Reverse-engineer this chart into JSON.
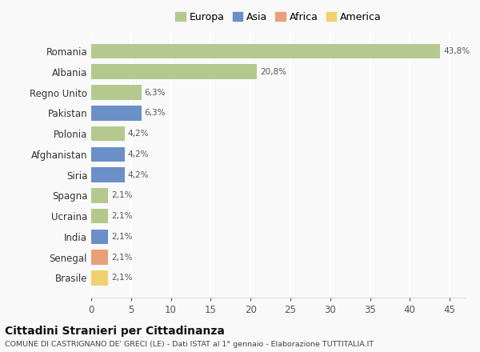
{
  "categories": [
    "Romania",
    "Albania",
    "Regno Unito",
    "Pakistan",
    "Polonia",
    "Afghanistan",
    "Siria",
    "Spagna",
    "Ucraina",
    "India",
    "Senegal",
    "Brasile"
  ],
  "values": [
    43.8,
    20.8,
    6.3,
    6.3,
    4.2,
    4.2,
    4.2,
    2.1,
    2.1,
    2.1,
    2.1,
    2.1
  ],
  "labels": [
    "43,8%",
    "20,8%",
    "6,3%",
    "6,3%",
    "4,2%",
    "4,2%",
    "4,2%",
    "2,1%",
    "2,1%",
    "2,1%",
    "2,1%",
    "2,1%"
  ],
  "colors": [
    "#b5c98e",
    "#b5c98e",
    "#b5c98e",
    "#6b8fc7",
    "#b5c98e",
    "#6b8fc7",
    "#6b8fc7",
    "#b5c98e",
    "#b5c98e",
    "#6b8fc7",
    "#e8a07a",
    "#f0d070"
  ],
  "legend_labels": [
    "Europa",
    "Asia",
    "Africa",
    "America"
  ],
  "legend_colors": [
    "#b5c98e",
    "#6b8fc7",
    "#e8a07a",
    "#f0d070"
  ],
  "xlim": [
    0,
    47
  ],
  "xticks": [
    0,
    5,
    10,
    15,
    20,
    25,
    30,
    35,
    40,
    45
  ],
  "title": "Cittadini Stranieri per Cittadinanza",
  "subtitle": "COMUNE DI CASTRIGNANO DE' GRECI (LE) - Dati ISTAT al 1° gennaio - Elaborazione TUTTITALIA.IT",
  "bg_color": "#f9f9f9",
  "grid_color": "#ffffff",
  "bar_height": 0.72
}
